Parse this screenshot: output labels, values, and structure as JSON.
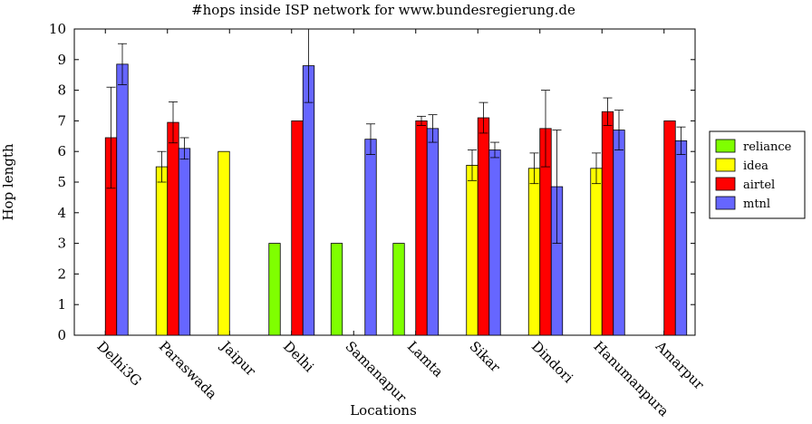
{
  "chart_data": {
    "type": "bar",
    "title": "#hops inside ISP network for www.bundesregierung.de",
    "xlabel": "Locations",
    "ylabel": "Hop length",
    "ylim": [
      0,
      10
    ],
    "yticks": [
      "0",
      "1",
      "2",
      "3",
      "4",
      "5",
      "6",
      "7",
      "8",
      "9",
      "10"
    ],
    "grid": false,
    "legend_position": "right",
    "categories": [
      "Delhi3G",
      "Paraswada",
      "Jaipur",
      "Delhi",
      "Samanapur",
      "Lamta",
      "Sikar",
      "Dindori",
      "Hanumanpura",
      "Amarpur"
    ],
    "series": [
      {
        "name": "reliance",
        "color": "#7fff00",
        "values": [
          null,
          null,
          null,
          3,
          3,
          3,
          null,
          null,
          null,
          null
        ],
        "err": [
          null,
          null,
          null,
          0,
          0,
          0,
          null,
          null,
          null,
          null
        ]
      },
      {
        "name": "idea",
        "color": "#ffff00",
        "values": [
          null,
          5.5,
          6,
          null,
          null,
          null,
          5.55,
          5.45,
          5.45,
          null
        ],
        "err": [
          null,
          0.5,
          0,
          null,
          null,
          null,
          0.5,
          0.5,
          0.5,
          null
        ]
      },
      {
        "name": "airtel",
        "color": "#ff0000",
        "values": [
          6.45,
          6.95,
          null,
          7.0,
          null,
          7.0,
          7.1,
          6.75,
          7.3,
          7.0
        ],
        "err": [
          1.65,
          0.67,
          null,
          0,
          null,
          0.15,
          0.5,
          1.25,
          0.45,
          0
        ]
      },
      {
        "name": "mtnl",
        "color": "#6666ff",
        "values": [
          8.85,
          6.1,
          null,
          8.8,
          6.4,
          6.75,
          6.05,
          4.85,
          6.7,
          6.35
        ],
        "err": [
          0.67,
          0.35,
          null,
          1.2,
          0.5,
          0.45,
          0.25,
          1.85,
          0.65,
          0.45
        ]
      }
    ]
  }
}
